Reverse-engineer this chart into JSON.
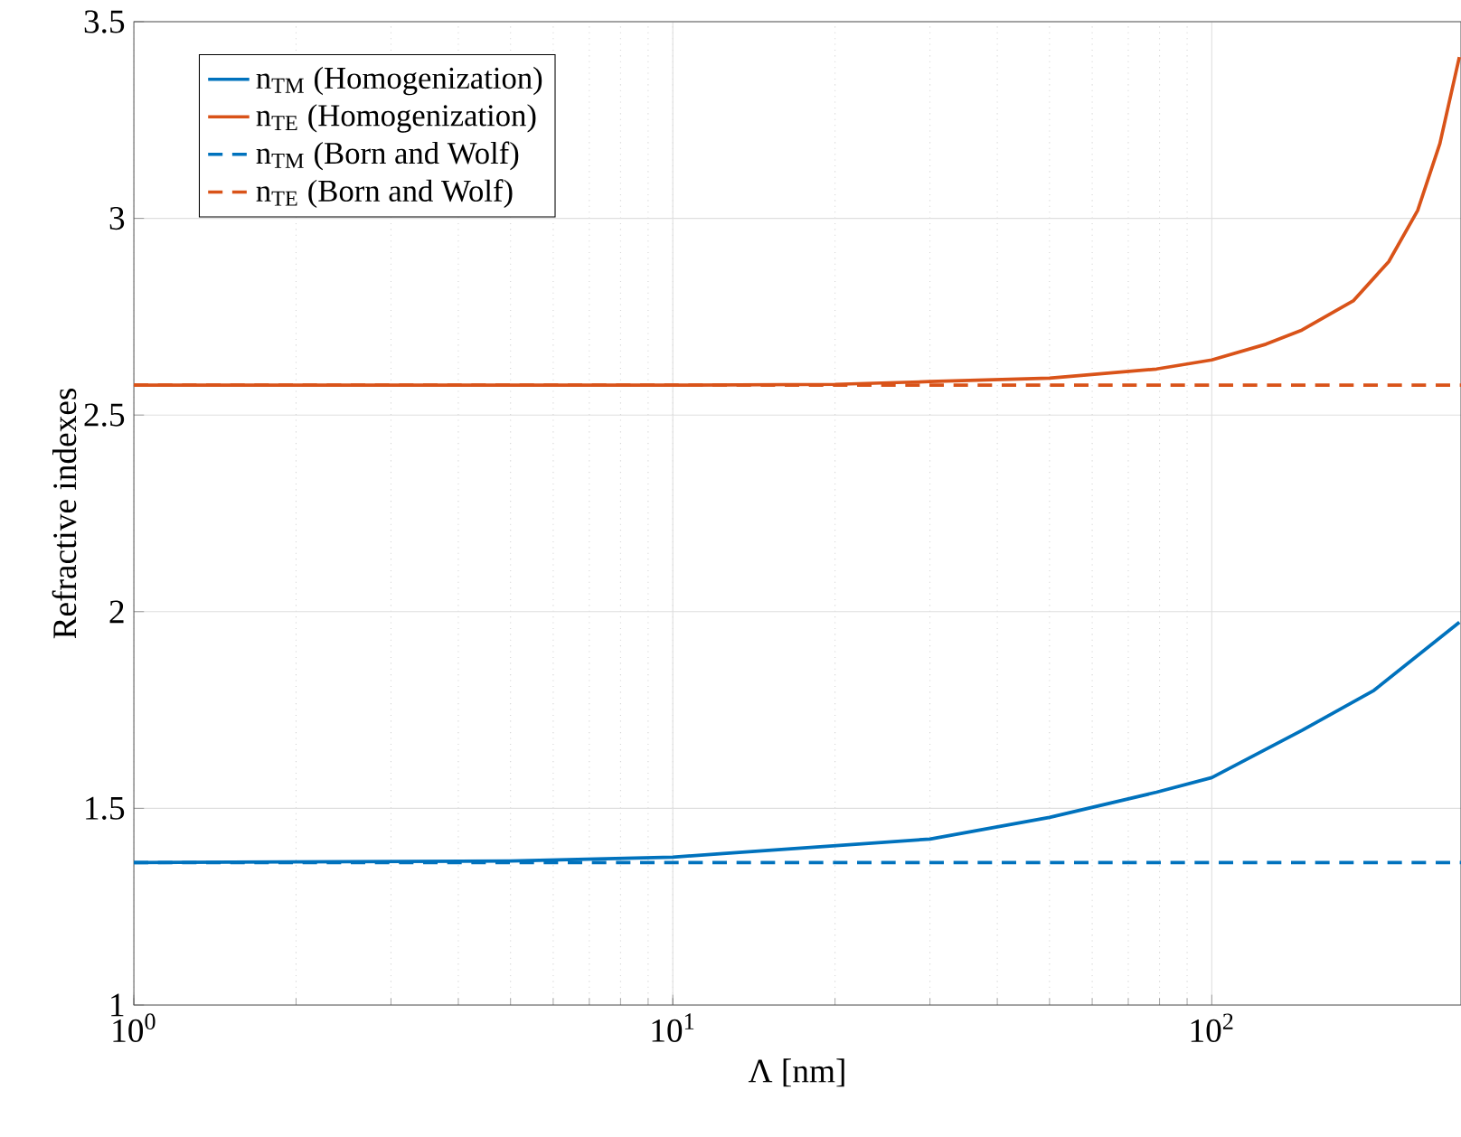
{
  "chart_data": {
    "type": "line",
    "xlabel": "Λ [nm]",
    "ylabel": "Refractive indexes",
    "log": "x",
    "grid": true,
    "legend": "top left",
    "xlim": [
      1,
      290
    ],
    "ylim": [
      1,
      3.5
    ],
    "xticks": [
      {
        "value": 1,
        "label": "10$^{0}$"
      },
      {
        "value": 10,
        "label": "10$^{1}$"
      },
      {
        "value": 100,
        "label": "10$^{2}$"
      }
    ],
    "yticks": [
      1,
      1.5,
      2,
      2.5,
      3,
      3.5
    ],
    "series": [
      {
        "name": "n$_{TM}$ (Homogenization)",
        "color": "#0072bd",
        "line_style": "solid",
        "x": [
          1,
          5,
          10,
          12.4,
          30,
          50,
          79,
          100,
          147,
          200,
          288
        ],
        "values": [
          1.362,
          1.366,
          1.376,
          1.385,
          1.422,
          1.477,
          1.541,
          1.578,
          1.698,
          1.8,
          1.973
        ]
      },
      {
        "name": "n$_{TE}$ (Homogenization)",
        "color": "#d95319",
        "line_style": "solid",
        "x": [
          1,
          10,
          20,
          30,
          50,
          79,
          100,
          126,
          147,
          183,
          213,
          241,
          265,
          288
        ],
        "values": [
          2.576,
          2.576,
          2.578,
          2.585,
          2.594,
          2.617,
          2.64,
          2.68,
          2.716,
          2.79,
          2.89,
          3.02,
          3.19,
          3.41
        ]
      },
      {
        "name": "n$_{TM}$ (Born and Wolf)",
        "color": "#0072bd",
        "line_style": "dashed",
        "x": [
          1,
          290
        ],
        "values": [
          1.362,
          1.362
        ]
      },
      {
        "name": "n$_{TE}$ (Born and Wolf)",
        "color": "#d95319",
        "line_style": "dashed",
        "x": [
          1,
          290
        ],
        "values": [
          2.576,
          2.576
        ]
      }
    ]
  }
}
